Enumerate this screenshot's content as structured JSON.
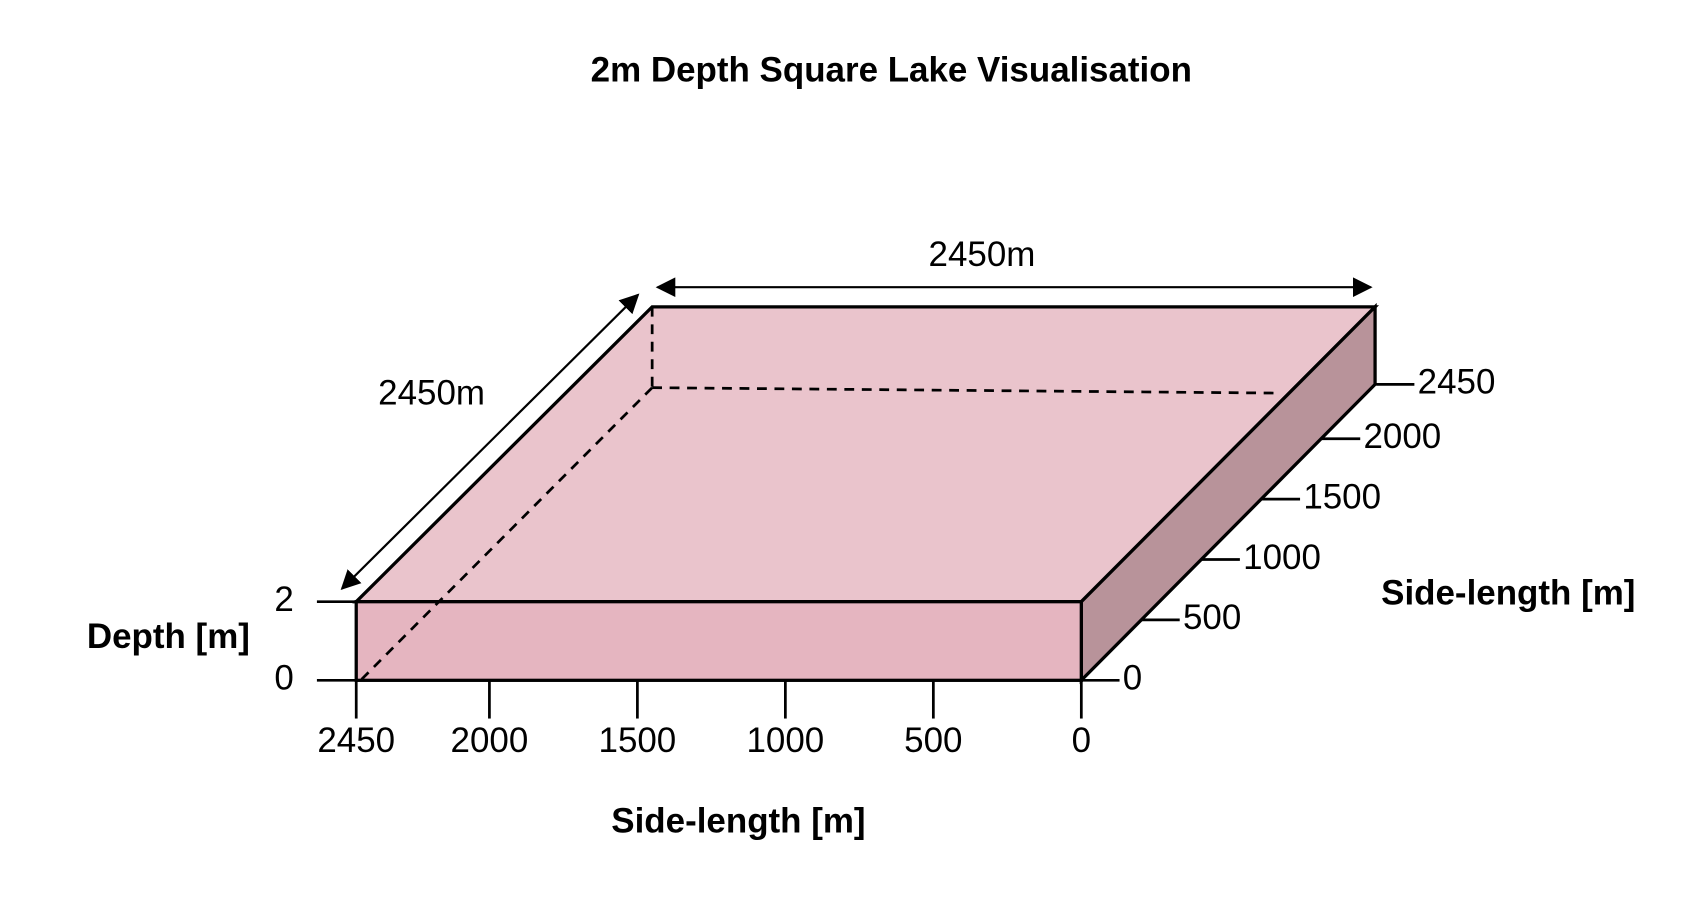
{
  "title": "2m Depth Square Lake Visualisation",
  "dimensions": {
    "top": "2450m",
    "left": "2450m"
  },
  "depth_axis": {
    "label": "Depth [m]",
    "ticks": [
      0,
      2
    ],
    "range": [
      0,
      2
    ]
  },
  "front_axis": {
    "label": "Side-length [m]",
    "ticks": [
      2450,
      2000,
      1500,
      1000,
      500,
      0
    ],
    "range": [
      0,
      2450
    ]
  },
  "side_axis": {
    "label": "Side-length [m]",
    "ticks": [
      0,
      500,
      1000,
      1500,
      2000,
      2450
    ],
    "range": [
      0,
      2450
    ]
  }
}
